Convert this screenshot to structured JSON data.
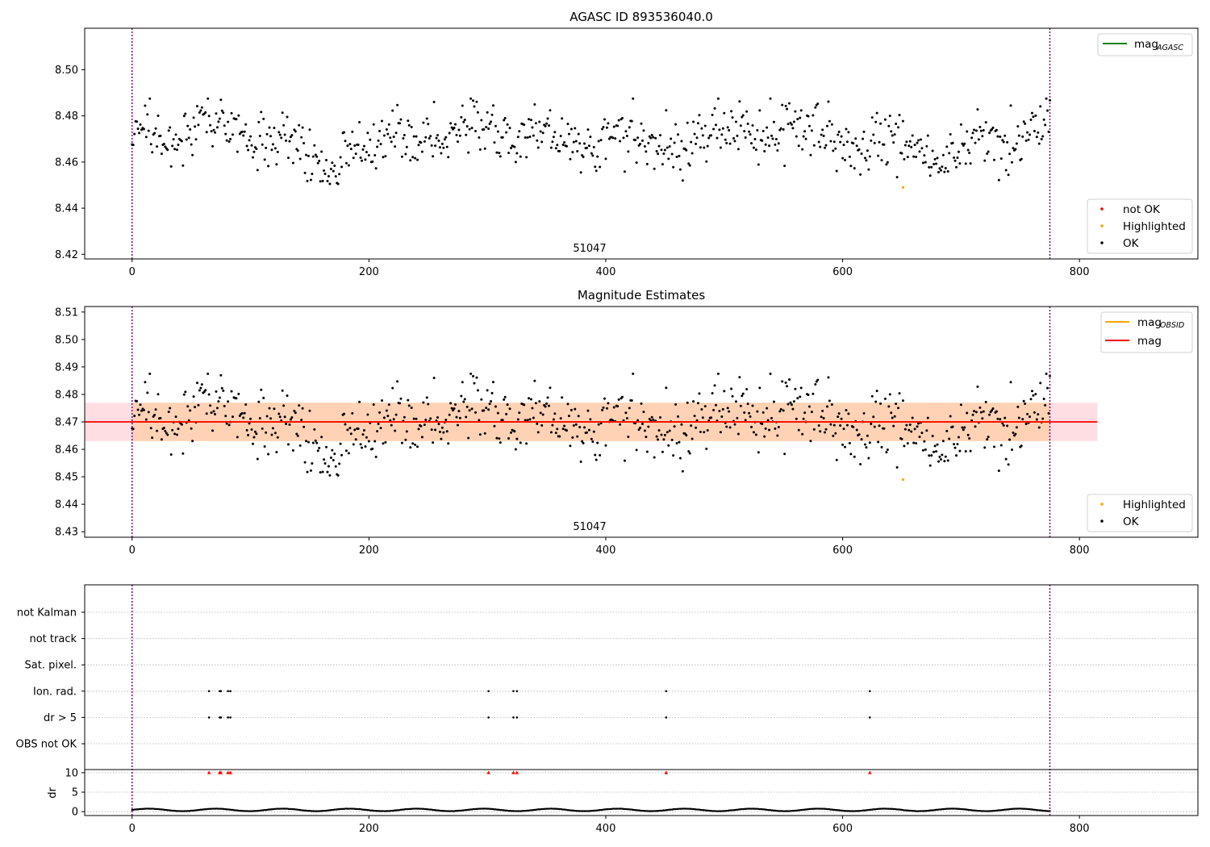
{
  "colors": {
    "ok": "#000000",
    "not_ok": "#ff0000",
    "highlighted": "#ffa500",
    "mag_agasc_line": "#008000",
    "mag_obsid_line": "#ffa500",
    "mag_line": "#ff0000",
    "obsid_band": "#ffa500",
    "mag_band": "#ffb6c1",
    "boundary_line": "#800080",
    "grid": "#b0b0b0"
  },
  "chart_data": [
    {
      "type": "scatter",
      "title": "AGASC ID 893536040.0",
      "xlim": [
        -40,
        900
      ],
      "ylim": [
        8.418,
        8.518
      ],
      "x_ticks": [
        0,
        200,
        400,
        600,
        800
      ],
      "y_ticks": [
        8.42,
        8.44,
        8.46,
        8.48,
        8.5
      ],
      "y_tick_labels": [
        "8.42",
        "8.44",
        "8.46",
        "8.48",
        "8.50"
      ],
      "x_tick_labels": [
        "0",
        "200",
        "400",
        "600",
        "800"
      ],
      "obsid_boundaries": [
        0,
        775
      ],
      "obsid_label": "51047",
      "n_points": 776,
      "series": [
        {
          "name": "OK",
          "kind": "points"
        },
        {
          "name": "Highlighted",
          "kind": "points",
          "x": [
            651
          ],
          "y": [
            8.449
          ]
        }
      ],
      "legend_top": {
        "entries": [
          {
            "label": "mag",
            "sub": "AGASC",
            "color": "#008000"
          }
        ],
        "position": "top-right"
      },
      "legend_bottom": {
        "entries": [
          {
            "label": "not OK",
            "color": "#ff0000"
          },
          {
            "label": "Highlighted",
            "color": "#ffa500"
          },
          {
            "label": "OK",
            "color": "#000000"
          }
        ],
        "position": "bottom-right"
      }
    },
    {
      "type": "scatter",
      "title": "Magnitude Estimates",
      "xlim": [
        -40,
        900
      ],
      "ylim": [
        8.428,
        8.512
      ],
      "x_ticks": [
        0,
        200,
        400,
        600,
        800
      ],
      "x_tick_labels": [
        "0",
        "200",
        "400",
        "600",
        "800"
      ],
      "y_ticks": [
        8.43,
        8.44,
        8.45,
        8.46,
        8.47,
        8.48,
        8.49,
        8.5,
        8.51
      ],
      "y_tick_labels": [
        "8.43",
        "8.44",
        "8.45",
        "8.46",
        "8.47",
        "8.48",
        "8.49",
        "8.50",
        "8.51"
      ],
      "obsid_boundaries": [
        0,
        775
      ],
      "obsid_label": "51047",
      "mag_line": {
        "value": 8.47,
        "x_range": [
          -40,
          815
        ]
      },
      "mag_band": {
        "low": 8.463,
        "high": 8.477,
        "x_range": [
          -40,
          815
        ]
      },
      "obsid_band": {
        "low": 8.463,
        "high": 8.477,
        "x_range": [
          0,
          775
        ]
      },
      "series": [
        {
          "name": "OK",
          "kind": "points"
        },
        {
          "name": "Highlighted",
          "kind": "points",
          "x": [
            651
          ],
          "y": [
            8.449
          ]
        }
      ],
      "legend_top": {
        "entries": [
          {
            "label": "mag",
            "sub": "OBSID",
            "color": "#ffa500"
          },
          {
            "label": "mag",
            "sub": "",
            "color": "#ff0000"
          }
        ],
        "position": "top-right"
      },
      "legend_bottom": {
        "entries": [
          {
            "label": "Highlighted",
            "color": "#ffa500"
          },
          {
            "label": "OK",
            "color": "#000000"
          }
        ],
        "position": "bottom-right"
      }
    },
    {
      "type": "scatter",
      "title": "",
      "xlim": [
        -40,
        900
      ],
      "x_ticks": [
        0,
        200,
        400,
        600,
        800
      ],
      "x_tick_labels": [
        "0",
        "200",
        "400",
        "600",
        "800"
      ],
      "flag_rows": [
        "not Kalman",
        "not track",
        "Sat. pixel.",
        "Ion. rad.",
        "dr > 5",
        "OBS not OK"
      ],
      "flags": {
        "Ion. rad.": [
          65,
          74,
          75,
          81,
          83,
          301,
          322,
          325,
          451,
          623
        ],
        "dr > 5": [
          65,
          74,
          75,
          81,
          83,
          301,
          322,
          325,
          451,
          623
        ]
      },
      "dr": {
        "ylabel": "dr",
        "ylim": [
          -1,
          10.8
        ],
        "y_ticks": [
          0,
          5,
          10
        ],
        "y_tick_labels": [
          "0",
          "5",
          "10"
        ],
        "clipped_x": [
          65,
          74,
          75,
          81,
          83,
          301,
          322,
          325,
          451,
          623
        ],
        "clipped_value": 10,
        "typical_range": [
          0.1,
          0.8
        ]
      },
      "obsid_boundaries": [
        0,
        775
      ]
    }
  ]
}
